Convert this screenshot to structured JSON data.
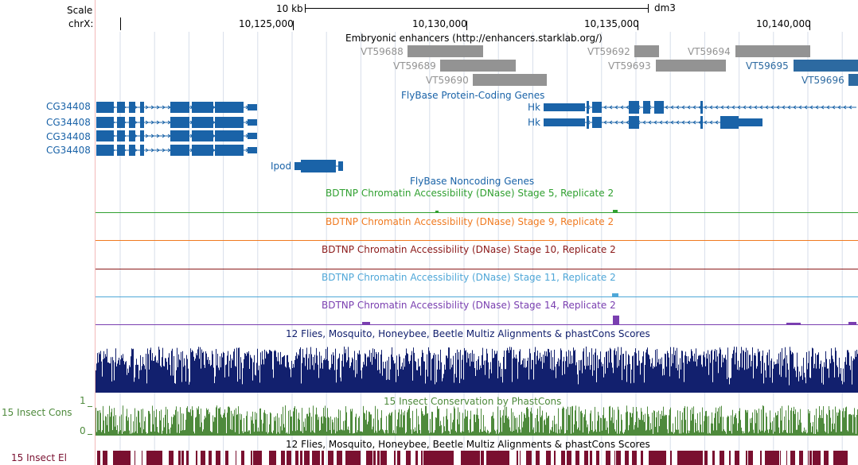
{
  "colors": {
    "gene_blue": "#1a63a8",
    "enhancer_gray": "#939393",
    "enhancer_blue": "#2d6aa1",
    "stage5": "#30a030",
    "stage9": "#f07a20",
    "stage10": "#8b1a1a",
    "stage11": "#4fa7d8",
    "stage14": "#7a3fb0",
    "multiz": "#12206e",
    "phastcons": "#4e8a3c",
    "elements": "#7a1030",
    "guide": "#f2b9b9",
    "grid": "#d7deea"
  },
  "ruler": {
    "scale_label": "Scale",
    "scale_bar_label": "10 kb",
    "assembly": "dm3",
    "chrom_label": "chrX:",
    "positions": [
      "10,125,000",
      "10,130,000",
      "10,135,000",
      "10,140,000"
    ]
  },
  "enhancers": {
    "title": "Embryonic enhancers (http://enhancers.starklab.org/)",
    "items": [
      {
        "name": "VT59688",
        "color": "gray"
      },
      {
        "name": "VT59689",
        "color": "gray"
      },
      {
        "name": "VT59690",
        "color": "gray"
      },
      {
        "name": "VT59692",
        "color": "gray"
      },
      {
        "name": "VT59693",
        "color": "gray"
      },
      {
        "name": "VT59694",
        "color": "gray"
      },
      {
        "name": "VT59695",
        "color": "blue"
      },
      {
        "name": "VT59696",
        "color": "blue"
      }
    ]
  },
  "genes": {
    "title": "FlyBase Protein-Coding Genes",
    "left_labels": [
      "CG34408",
      "CG34408",
      "CG34408",
      "CG34408"
    ],
    "hk_labels": [
      "Hk",
      "Hk"
    ],
    "ipod_label": "Ipod"
  },
  "noncoding": {
    "title": "FlyBase Noncoding Genes"
  },
  "dnase": [
    {
      "title": "BDTNP Chromatin Accessibility (DNase) Stage 5, Replicate 2",
      "color": "stage5"
    },
    {
      "title": "BDTNP Chromatin Accessibility (DNase) Stage 9, Replicate 2",
      "color": "stage9"
    },
    {
      "title": "BDTNP Chromatin Accessibility (DNase) Stage 10, Replicate 2",
      "color": "stage10"
    },
    {
      "title": "BDTNP Chromatin Accessibility (DNase) Stage 11, Replicate 2",
      "color": "stage11"
    },
    {
      "title": "BDTNP Chromatin Accessibility (DNase) Stage 14, Replicate 2",
      "color": "stage14"
    }
  ],
  "multiz": {
    "title": "12 Flies, Mosquito, Honeybee, Beetle Multiz Alignments & phastCons Scores"
  },
  "phastcons": {
    "title": "15 Insect Conservation by PhastCons",
    "side_label": "15 Insect Cons",
    "y_max": "1",
    "y_min": "0"
  },
  "elements": {
    "title": "12 Flies, Mosquito, Honeybee, Beetle Multiz Alignments & phastCons Scores",
    "side_label": "15 Insect El"
  }
}
